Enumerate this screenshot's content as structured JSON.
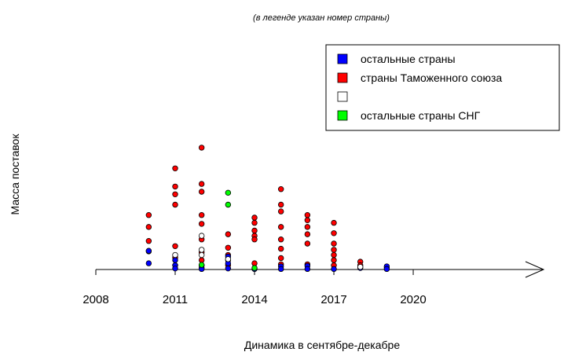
{
  "chart_data": {
    "type": "scatter",
    "subtitle": "(в легенде указан номер страны)",
    "xlabel": "Динамика в сентябре-декабре",
    "ylabel": "Масса поставок",
    "xlim": [
      2008,
      2022
    ],
    "ylim": [
      0,
      24
    ],
    "x_ticks": [
      2008,
      2011,
      2014,
      2017,
      2020
    ],
    "x_tick_labels": [
      "2008",
      "2011",
      "2014",
      "2017",
      "2020"
    ],
    "grid": false,
    "legend_position": "top-right",
    "legend": [
      {
        "label": "остальные страны",
        "color": "#0000ff"
      },
      {
        "label": "страны Таможенного союза",
        "color": "#ff0000"
      },
      {
        "label": "",
        "color": "#ffffff"
      },
      {
        "label": "остальные страны СНГ",
        "color": "#00ff00"
      }
    ],
    "series": [
      {
        "name": "страны Таможенного союза",
        "color": "#ff0000",
        "points": [
          [
            2010,
            10.5
          ],
          [
            2010,
            8.2
          ],
          [
            2010,
            5.5
          ],
          [
            2010,
            3.5
          ],
          [
            2011,
            19.5
          ],
          [
            2011,
            16.0
          ],
          [
            2011,
            14.5
          ],
          [
            2011,
            12.5
          ],
          [
            2011,
            4.5
          ],
          [
            2011,
            2.3
          ],
          [
            2011,
            0.8
          ],
          [
            2012,
            23.5
          ],
          [
            2012,
            16.5
          ],
          [
            2012,
            15.0
          ],
          [
            2012,
            10.5
          ],
          [
            2012,
            8.8
          ],
          [
            2012,
            5.8
          ],
          [
            2012,
            3.3
          ],
          [
            2012,
            1.8
          ],
          [
            2012,
            0.8
          ],
          [
            2013,
            6.8
          ],
          [
            2013,
            4.2
          ],
          [
            2013,
            2.8
          ],
          [
            2013,
            1.8
          ],
          [
            2013,
            0.8
          ],
          [
            2014,
            10.0
          ],
          [
            2014,
            9.0
          ],
          [
            2014,
            7.5
          ],
          [
            2014,
            6.5
          ],
          [
            2014,
            5.8
          ],
          [
            2014,
            1.2
          ],
          [
            2015,
            15.5
          ],
          [
            2015,
            12.5
          ],
          [
            2015,
            11.2
          ],
          [
            2015,
            8.2
          ],
          [
            2015,
            5.8
          ],
          [
            2015,
            4.0
          ],
          [
            2015,
            2.2
          ],
          [
            2015,
            1.0
          ],
          [
            2016,
            10.5
          ],
          [
            2016,
            9.5
          ],
          [
            2016,
            8.2
          ],
          [
            2016,
            6.8
          ],
          [
            2016,
            5.0
          ],
          [
            2016,
            1.0
          ],
          [
            2017,
            9.0
          ],
          [
            2017,
            7.0
          ],
          [
            2017,
            5.0
          ],
          [
            2017,
            3.8
          ],
          [
            2017,
            2.8
          ],
          [
            2017,
            1.8
          ],
          [
            2017,
            0.8
          ],
          [
            2018,
            1.5
          ],
          [
            2018,
            0.8
          ],
          [
            2019,
            0.4
          ]
        ]
      },
      {
        "name": "остальные страны",
        "color": "#0000ff",
        "points": [
          [
            2010,
            3.6
          ],
          [
            2010,
            1.2
          ],
          [
            2011,
            1.8
          ],
          [
            2011,
            0.8
          ],
          [
            2011,
            0.2
          ],
          [
            2012,
            0.8
          ],
          [
            2012,
            0.3
          ],
          [
            2012,
            0.1
          ],
          [
            2013,
            2.5
          ],
          [
            2013,
            1.2
          ],
          [
            2013,
            0.2
          ],
          [
            2014,
            0.1
          ],
          [
            2015,
            0.6
          ],
          [
            2015,
            0.1
          ],
          [
            2016,
            0.7
          ],
          [
            2016,
            0.1
          ],
          [
            2017,
            0.1
          ],
          [
            2018,
            0.3
          ],
          [
            2019,
            0.6
          ],
          [
            2019,
            0.1
          ]
        ]
      },
      {
        "name": "",
        "color": "#ffffff",
        "points": [
          [
            2011,
            2.8
          ],
          [
            2012,
            6.5
          ],
          [
            2012,
            3.8
          ],
          [
            2012,
            2.8
          ],
          [
            2013,
            2.0
          ],
          [
            2018,
            0.5
          ]
        ]
      },
      {
        "name": "остальные страны СНГ",
        "color": "#00ff00",
        "points": [
          [
            2013,
            14.8
          ],
          [
            2013,
            12.5
          ],
          [
            2012,
            0.9
          ],
          [
            2014,
            0.3
          ]
        ]
      }
    ]
  }
}
